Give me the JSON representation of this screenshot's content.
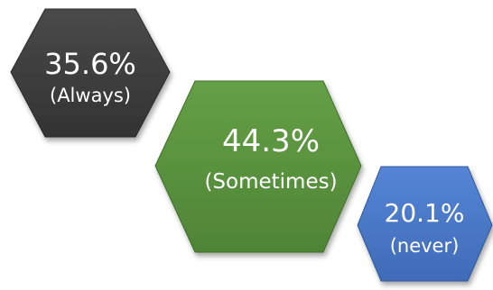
{
  "chart_data": {
    "type": "other",
    "title": "",
    "items": [
      {
        "value_text": "35.6%",
        "label": "(Always)",
        "value": 35.6,
        "color": "#3f3f3f"
      },
      {
        "value_text": "44.3%",
        "label": "(Sometimes)",
        "value": 44.3,
        "color": "#5b9440"
      },
      {
        "value_text": "20.1%",
        "label": "(never)",
        "value": 20.1,
        "color": "#4a78c8"
      }
    ]
  }
}
